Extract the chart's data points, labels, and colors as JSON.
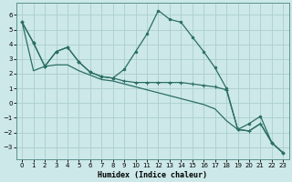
{
  "xlabel": "Humidex (Indice chaleur)",
  "xlim": [
    -0.5,
    23.5
  ],
  "ylim": [
    -3.8,
    6.8
  ],
  "yticks": [
    -3,
    -2,
    -1,
    0,
    1,
    2,
    3,
    4,
    5,
    6
  ],
  "xticks": [
    0,
    1,
    2,
    3,
    4,
    5,
    6,
    7,
    8,
    9,
    10,
    11,
    12,
    13,
    14,
    15,
    16,
    17,
    18,
    19,
    20,
    21,
    22,
    23
  ],
  "bg_color": "#cde8e8",
  "grid_color": "#aacece",
  "line_color": "#2a6e65",
  "line1_y": [
    5.5,
    4.1,
    2.5,
    3.5,
    3.8,
    2.8,
    2.1,
    1.8,
    1.7,
    2.3,
    3.5,
    4.7,
    6.3,
    5.7,
    5.5,
    4.5,
    3.5,
    2.4,
    1.0,
    -1.8,
    -1.4,
    -0.9,
    -2.7,
    -3.4
  ],
  "line2_y": [
    5.5,
    4.1,
    2.5,
    3.5,
    3.8,
    2.8,
    2.1,
    1.8,
    1.7,
    1.5,
    1.4,
    1.4,
    1.4,
    1.4,
    1.4,
    1.3,
    1.2,
    1.1,
    0.9,
    -1.8,
    -1.9,
    -1.4,
    -2.7,
    -3.4
  ],
  "line3_y": [
    5.5,
    2.2,
    2.5,
    2.6,
    2.6,
    2.2,
    1.9,
    1.6,
    1.5,
    1.3,
    1.1,
    0.9,
    0.7,
    0.5,
    0.3,
    0.1,
    -0.1,
    -0.4,
    -1.2,
    -1.8,
    -1.9,
    -1.4,
    -2.7,
    -3.4
  ]
}
